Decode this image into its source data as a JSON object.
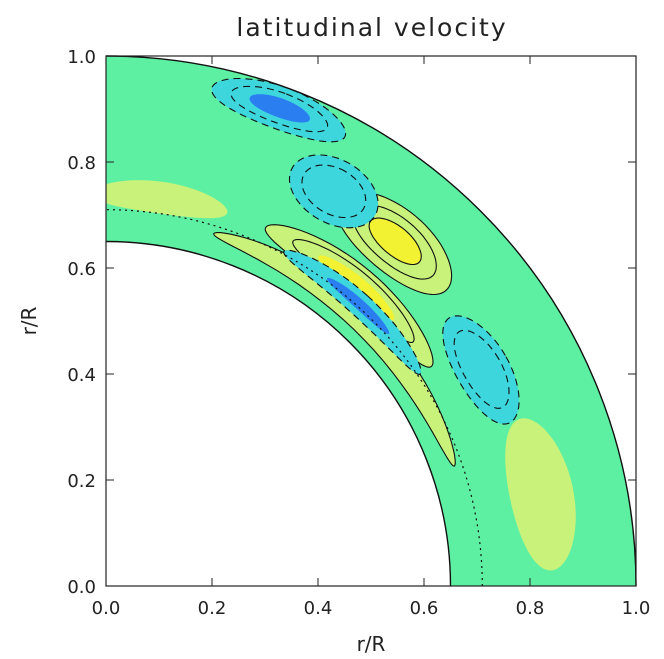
{
  "chart_data": {
    "type": "heatmap",
    "title": "latitudinal velocity",
    "xlabel": "r/R",
    "ylabel": "r/R",
    "xlim": [
      0.0,
      1.0
    ],
    "ylim": [
      0.0,
      1.0
    ],
    "xticks": [
      "0.0",
      "0.2",
      "0.4",
      "0.6",
      "0.8",
      "1.0"
    ],
    "yticks": [
      "0.0",
      "0.2",
      "0.4",
      "0.6",
      "0.8",
      "1.0"
    ],
    "domain": {
      "inner_radius": 0.65,
      "outer_radius": 1.0,
      "dotted_radius": 0.71
    },
    "colormap": {
      "background": "#5ef0a2",
      "positive": "#c8f27a",
      "strong_positive": "#f2f232",
      "negative": "#3cd6dc",
      "strong_negative": "#2a7ef0"
    },
    "features": [
      {
        "sign": "positive",
        "r": 0.85,
        "theta_deg": 50,
        "rr": 0.06,
        "rt": 9,
        "level": "strong",
        "contours": 3
      },
      {
        "sign": "positive",
        "r": 0.74,
        "theta_deg": 50,
        "rr": 0.035,
        "rt": 16,
        "level": "strong",
        "contours": 2
      },
      {
        "sign": "positive",
        "r": 0.695,
        "theta_deg": 46,
        "rr": 0.022,
        "rt": 27,
        "level": "weak",
        "contours": 1
      },
      {
        "sign": "negative",
        "r": 0.715,
        "theta_deg": 48,
        "rr": 0.022,
        "rt": 14,
        "level": "strong",
        "contours": 1
      },
      {
        "sign": "negative",
        "r": 0.96,
        "theta_deg": 70,
        "rr": 0.04,
        "rt": 8,
        "level": "strong",
        "contours": 2
      },
      {
        "sign": "negative",
        "r": 0.86,
        "theta_deg": 60,
        "rr": 0.06,
        "rt": 6,
        "level": "weak",
        "contours": 2
      },
      {
        "sign": "negative",
        "r": 0.82,
        "theta_deg": 30,
        "rr": 0.05,
        "rt": 8,
        "level": "weak",
        "contours": 2
      },
      {
        "sign": "positive",
        "r": 0.84,
        "theta_deg": 12,
        "rr": 0.06,
        "rt": 10,
        "level": "weak",
        "contours": 0
      },
      {
        "sign": "positive",
        "r": 0.74,
        "theta_deg": 82,
        "rr": 0.03,
        "rt": 10,
        "level": "weak",
        "contours": 0
      }
    ]
  }
}
